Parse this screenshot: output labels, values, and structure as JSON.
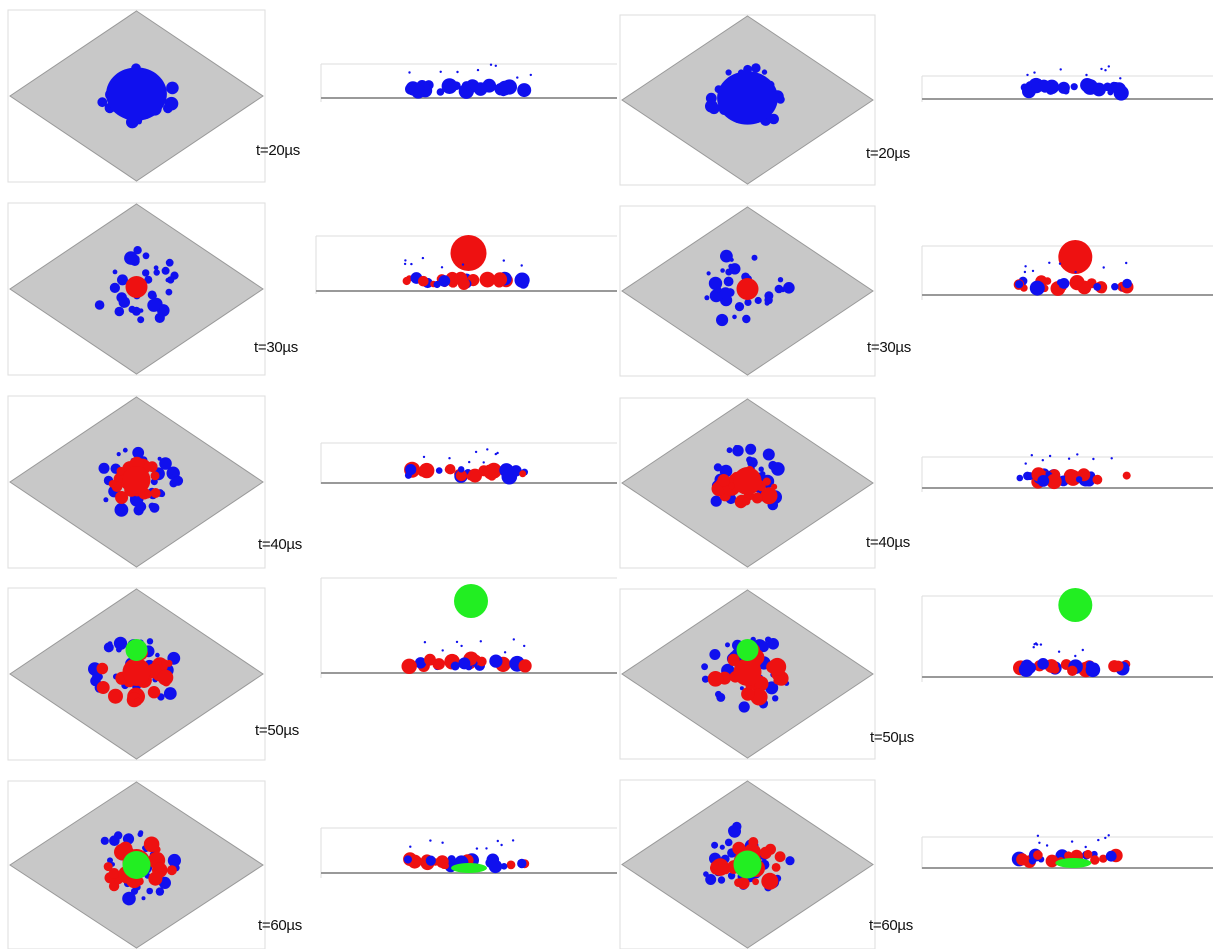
{
  "figure": {
    "time_labels": [
      "t=20µs",
      "t=30µs",
      "t=40µs",
      "t=50µs",
      "t=60µs"
    ],
    "colors": {
      "substrate": "#c8c8c8",
      "substrate_edge": "#999999",
      "panel_border": "#dddddd",
      "drop_first": "#1010ee",
      "drop_second": "#ee1111",
      "drop_third": "#22ee22"
    }
  }
}
